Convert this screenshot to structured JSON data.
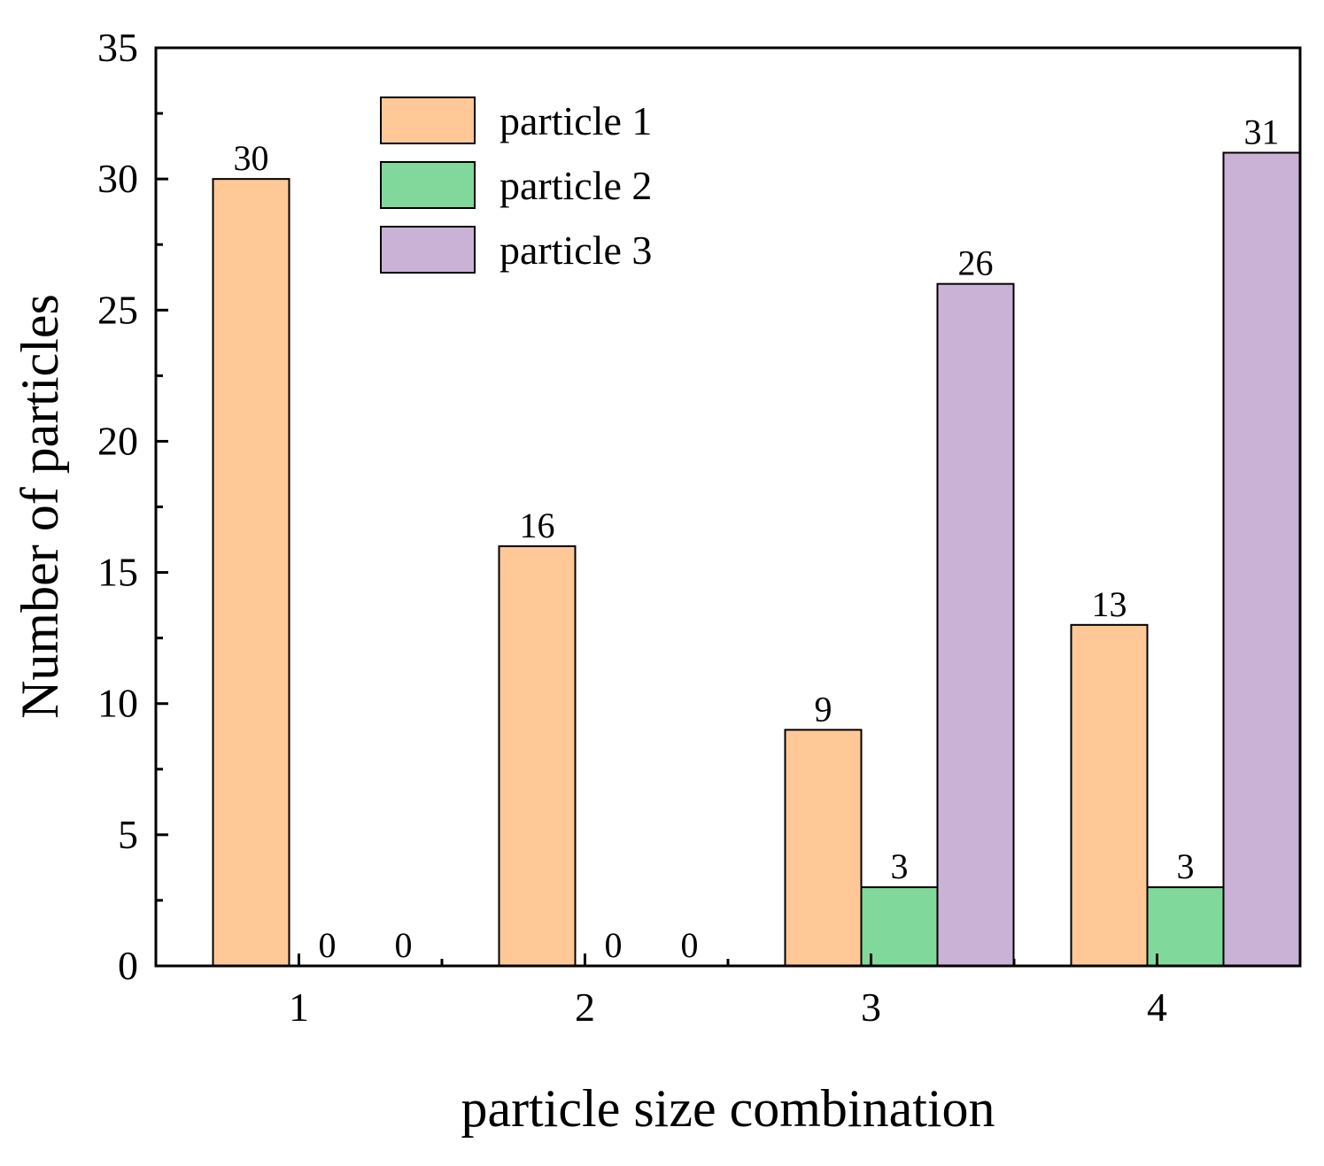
{
  "chart_data": {
    "type": "bar",
    "title": "",
    "xlabel": "particle size combination",
    "ylabel": "Number of particles",
    "categories": [
      "1",
      "2",
      "3",
      "4"
    ],
    "ylim": [
      0,
      35
    ],
    "yticks": [
      0,
      5,
      10,
      15,
      20,
      25,
      30,
      35
    ],
    "grid": false,
    "legend_position": "top-center",
    "series": [
      {
        "name": "particle 1",
        "color": "#FFC896",
        "values": [
          30,
          16,
          9,
          13
        ]
      },
      {
        "name": "particle 2",
        "color": "#80D99A",
        "values": [
          0,
          0,
          3,
          3
        ]
      },
      {
        "name": "particle 3",
        "color": "#CAB2D6",
        "values": [
          0,
          0,
          26,
          31
        ]
      }
    ]
  }
}
